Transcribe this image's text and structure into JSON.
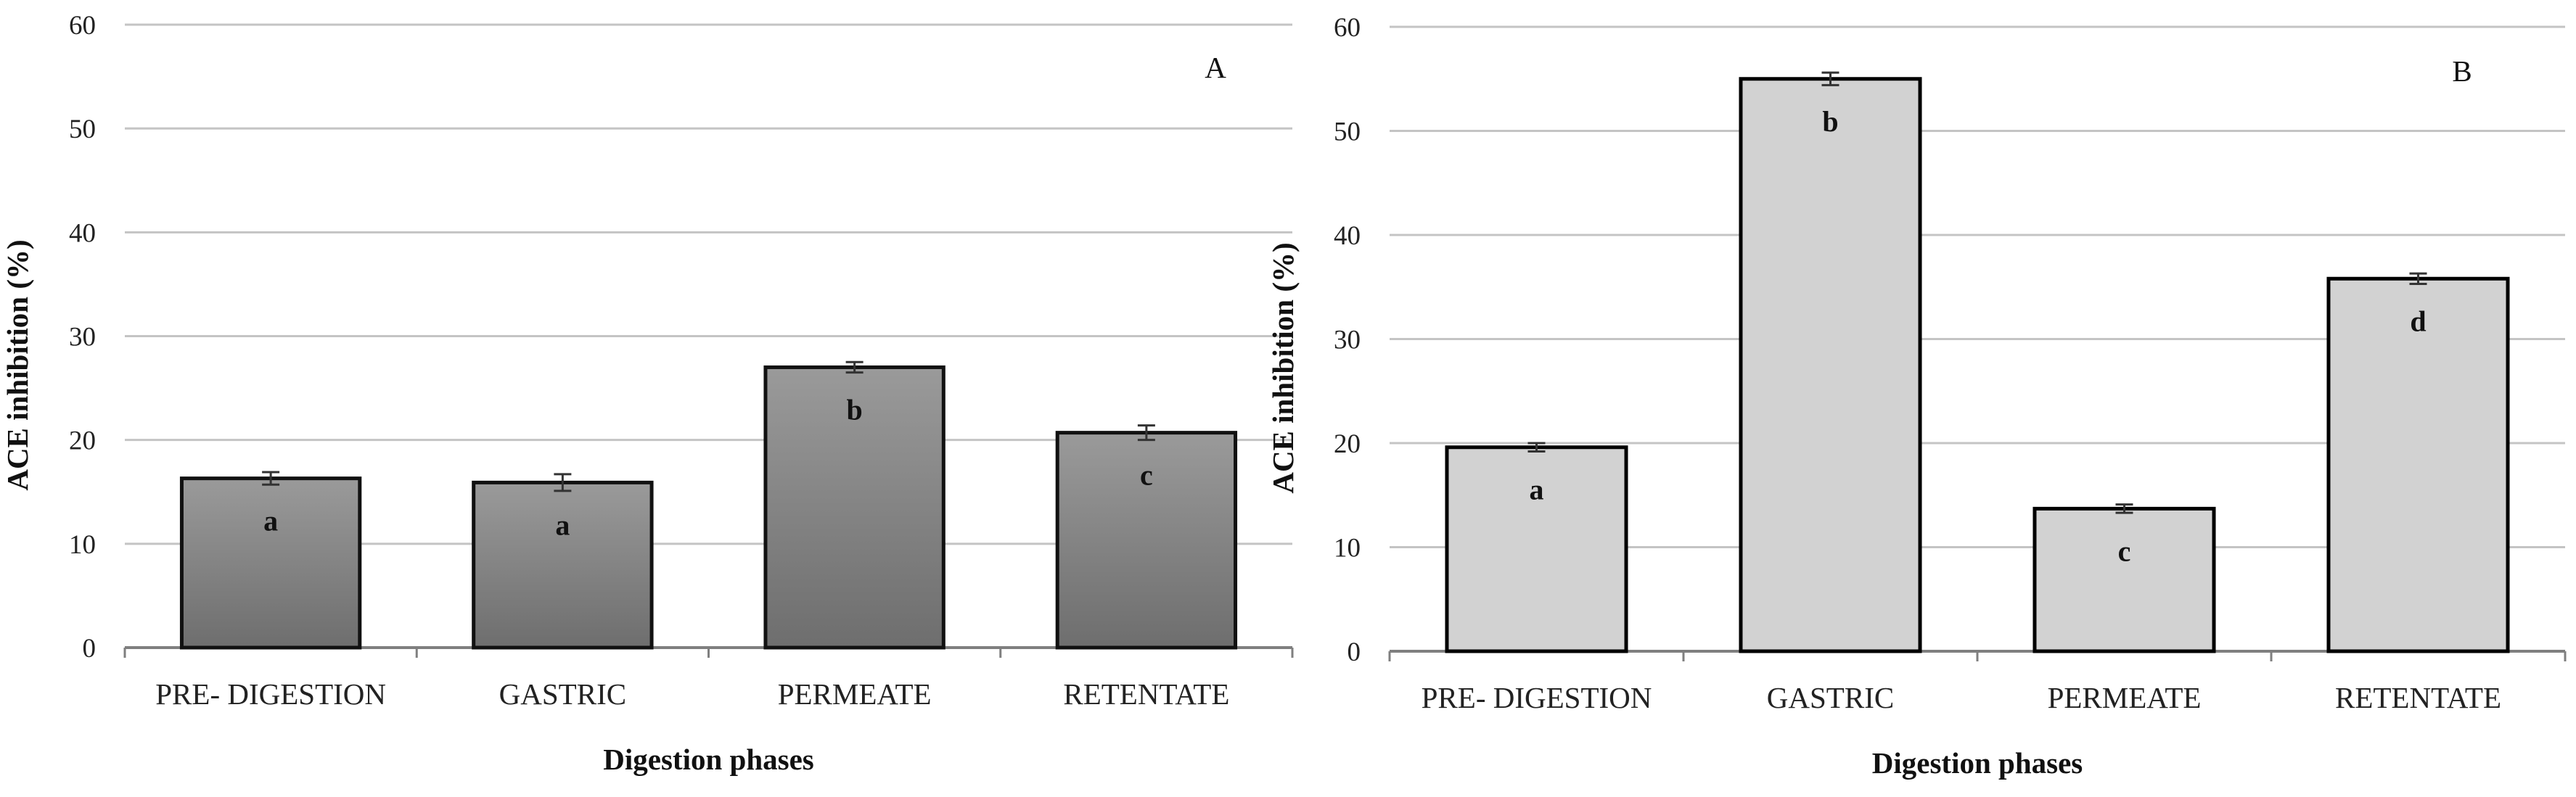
{
  "chart_data": [
    {
      "type": "bar",
      "panel_label": "A",
      "title": "",
      "xlabel": "Digestion phases",
      "ylabel": "ACE inhibition (%)",
      "ylim": [
        0,
        60
      ],
      "yticks": [
        0,
        10,
        20,
        30,
        40,
        50,
        60
      ],
      "grid": true,
      "categories": [
        "PRE- DIGESTION",
        "GASTRIC",
        "PERMEATE",
        "RETENTATE"
      ],
      "values": [
        16.3,
        15.9,
        27.0,
        20.7
      ],
      "errors": [
        0.6,
        0.8,
        0.5,
        0.7
      ],
      "significance_letters": [
        "a",
        "a",
        "b",
        "c"
      ],
      "bar_fill": "gradient-dark-gray",
      "colors": {
        "bar_top": "#9a9a9a",
        "bar_bottom": "#6e6e6e",
        "bar_stroke": "#111111"
      }
    },
    {
      "type": "bar",
      "panel_label": "B",
      "title": "",
      "xlabel": "Digestion phases",
      "ylabel": "ACE inhibition (%)",
      "ylim": [
        0,
        60
      ],
      "yticks": [
        0,
        10,
        20,
        30,
        40,
        50,
        60
      ],
      "grid": true,
      "categories": [
        "PRE- DIGESTION",
        "GASTRIC",
        "PERMEATE",
        "RETENTATE"
      ],
      "values": [
        19.6,
        55.0,
        13.7,
        35.8
      ],
      "errors": [
        0.4,
        0.6,
        0.4,
        0.5
      ],
      "significance_letters": [
        "a",
        "b",
        "c",
        "d"
      ],
      "bar_fill": "solid-light-gray",
      "colors": {
        "bar_top": "#d2d2d2",
        "bar_bottom": "#d2d2d2",
        "bar_stroke": "#000000"
      }
    }
  ]
}
